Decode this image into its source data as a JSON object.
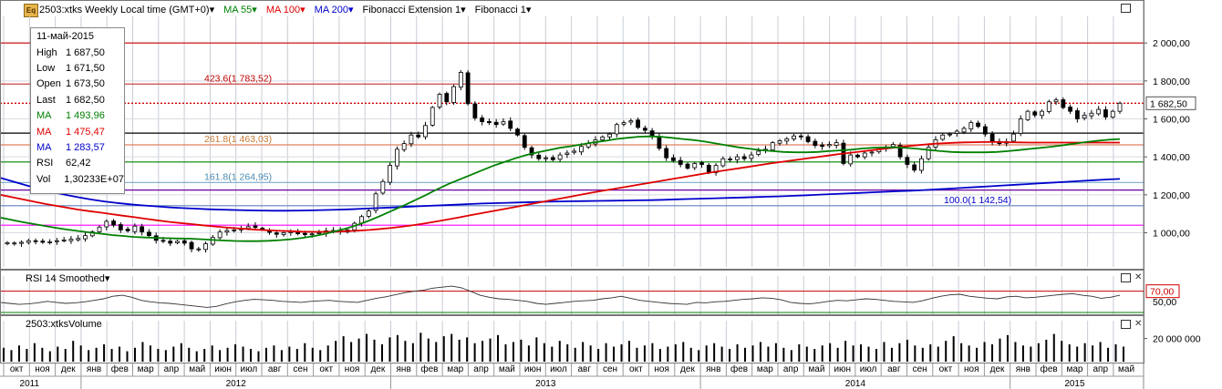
{
  "header": {
    "logo_text": "Eq",
    "symbol_title": "2503:xtks Weekly Local time (GMT+0)",
    "indicators": [
      {
        "label": "MA 55",
        "color": "#008000"
      },
      {
        "label": "MA 100",
        "color": "#e00000"
      },
      {
        "label": "MA 200",
        "color": "#0000cc"
      },
      {
        "label": "Fibonacci Extension 1",
        "color": "#000000"
      },
      {
        "label": "Fibonacci 1",
        "color": "#000000"
      }
    ]
  },
  "tooltip": {
    "date": "11-май-2015",
    "rows": [
      {
        "k": "High",
        "v": "1 687,50",
        "color": "#000000"
      },
      {
        "k": "Low",
        "v": "1 671,50",
        "color": "#000000"
      },
      {
        "k": "Open",
        "v": "1 673,50",
        "color": "#000000"
      },
      {
        "k": "Last",
        "v": "1 682,50",
        "color": "#000000"
      },
      {
        "k": "MA",
        "v": "1 493,96",
        "color": "#008000"
      },
      {
        "k": "MA",
        "v": "1 475,47",
        "color": "#e00000"
      },
      {
        "k": "MA",
        "v": "1 283,57",
        "color": "#0000cc"
      },
      {
        "k": "RSI",
        "v": "62,42",
        "color": "#000000"
      },
      {
        "k": "Vol",
        "v": "1,30233E+07",
        "color": "#000000"
      }
    ]
  },
  "chart_data": [
    {
      "type": "candlestick",
      "y_ticks": [
        "1 000,00",
        "1 200,00",
        "1 400,00",
        "1 600,00",
        "1 800,00",
        "2 000,00"
      ],
      "y_tick_values": [
        1000,
        1200,
        1400,
        1600,
        1800,
        2000
      ],
      "ylim": [
        820,
        2140
      ],
      "last_price_label": "1 682,50",
      "last_price": 1682.5,
      "fib_labels": [
        {
          "text": "423.6(1 783,52)",
          "value": 1783.52,
          "color": "#c00000"
        },
        {
          "text": "261.8(1 463,03)",
          "value": 1463.03,
          "color": "#c87832"
        },
        {
          "text": "161.8(1 264,95)",
          "value": 1264.95,
          "color": "#4a8ab0"
        },
        {
          "text": "100.0(1 142,54)",
          "value": 1142.54,
          "color": "#0000cc"
        }
      ],
      "horizontal_levels": [
        {
          "value": 2000,
          "color": "#cc0000"
        },
        {
          "value": 1783.52,
          "color": "#cc4444"
        },
        {
          "value": 1525,
          "color": "#000000"
        },
        {
          "value": 1463.03,
          "color": "#e08060"
        },
        {
          "value": 1373,
          "color": "#008000"
        },
        {
          "value": 1264.95,
          "color": "#7aaad0"
        },
        {
          "value": 1225,
          "color": "#6a00a0"
        },
        {
          "value": 1142.54,
          "color": "#6080c0"
        },
        {
          "value": 1040,
          "color": "#ff00ff"
        }
      ],
      "weekly_close": [
        948,
        946,
        950,
        958,
        955,
        950,
        952,
        958,
        962,
        966,
        970,
        985,
        1005,
        1030,
        1060,
        1040,
        1015,
        1010,
        1035,
        1005,
        985,
        960,
        955,
        945,
        955,
        945,
        915,
        915,
        942,
        975,
        1004,
        1012,
        1015,
        1020,
        1032,
        1028,
        1018,
        1002,
        992,
        1000,
        1006,
        995,
        990,
        994,
        1000,
        1010,
        1012,
        1005,
        1015,
        1050,
        1085,
        1115,
        1205,
        1270,
        1355,
        1440,
        1470,
        1515,
        1505,
        1565,
        1660,
        1730,
        1690,
        1770,
        1845,
        1680,
        1605,
        1585,
        1580,
        1570,
        1585,
        1550,
        1515,
        1450,
        1410,
        1390,
        1395,
        1385,
        1410,
        1420,
        1430,
        1455,
        1470,
        1490,
        1505,
        1520,
        1570,
        1580,
        1590,
        1555,
        1540,
        1510,
        1445,
        1395,
        1380,
        1360,
        1340,
        1365,
        1360,
        1320,
        1355,
        1390,
        1385,
        1400,
        1390,
        1410,
        1430,
        1440,
        1475,
        1485,
        1495,
        1510,
        1505,
        1480,
        1460,
        1455,
        1465,
        1475,
        1365,
        1410,
        1400,
        1420,
        1425,
        1440,
        1450,
        1465,
        1400,
        1360,
        1330,
        1390,
        1450,
        1490,
        1515,
        1520,
        1535,
        1550,
        1580,
        1560,
        1520,
        1480,
        1470,
        1480,
        1520,
        1600,
        1640,
        1620,
        1640,
        1690,
        1700,
        1660,
        1640,
        1600,
        1620,
        1630,
        1650,
        1610,
        1640,
        1682.5
      ],
      "ma_55": [
        1080,
        1068,
        1056,
        1046,
        1036,
        1026,
        1017,
        1009,
        1002,
        995,
        988,
        983,
        978,
        975,
        973,
        971,
        970,
        969,
        966,
        962,
        959,
        957,
        956,
        956,
        958,
        961,
        966,
        973,
        982,
        994,
        1008,
        1024,
        1043,
        1065,
        1090,
        1116,
        1142,
        1170,
        1198,
        1228,
        1256,
        1280,
        1304,
        1328,
        1352,
        1372,
        1392,
        1410,
        1424,
        1436,
        1448,
        1456,
        1466,
        1476,
        1484,
        1494,
        1500,
        1506,
        1508,
        1506,
        1500,
        1494,
        1488,
        1480,
        1470,
        1460,
        1450,
        1442,
        1435,
        1430,
        1426,
        1424,
        1424,
        1426,
        1430,
        1434,
        1438,
        1444,
        1448,
        1450,
        1450,
        1447,
        1442,
        1436,
        1430,
        1426,
        1424,
        1424,
        1424,
        1426,
        1430,
        1436,
        1442,
        1448,
        1454,
        1462,
        1470,
        1478,
        1485,
        1490,
        1494
      ],
      "ma_100": [
        1200,
        1188,
        1176,
        1164,
        1152,
        1142,
        1132,
        1122,
        1114,
        1106,
        1098,
        1090,
        1082,
        1074,
        1066,
        1058,
        1052,
        1046,
        1040,
        1034,
        1029,
        1024,
        1020,
        1016,
        1013,
        1010,
        1008,
        1006,
        1005,
        1005,
        1006,
        1008,
        1011,
        1015,
        1020,
        1026,
        1033,
        1041,
        1050,
        1060,
        1070,
        1081,
        1092,
        1103,
        1114,
        1125,
        1136,
        1147,
        1158,
        1169,
        1180,
        1191,
        1202,
        1213,
        1223,
        1233,
        1243,
        1253,
        1263,
        1273,
        1283,
        1293,
        1303,
        1313,
        1322,
        1331,
        1340,
        1349,
        1358,
        1367,
        1375,
        1383,
        1391,
        1399,
        1407,
        1415,
        1422,
        1429,
        1436,
        1443,
        1450,
        1456,
        1462,
        1467,
        1471,
        1474,
        1476,
        1477,
        1478,
        1478,
        1477,
        1476,
        1475,
        1475,
        1475,
        1475,
        1475,
        1475,
        1475,
        1475,
        1475
      ],
      "ma_200": [
        1290,
        1270,
        1250,
        1232,
        1215,
        1200,
        1187,
        1175,
        1165,
        1157,
        1150,
        1144,
        1139,
        1134,
        1130,
        1127,
        1124,
        1122,
        1120,
        1118,
        1117,
        1116,
        1116,
        1117,
        1118,
        1120,
        1122,
        1124,
        1127,
        1130,
        1133,
        1136,
        1139,
        1142,
        1145,
        1148,
        1151,
        1154,
        1156,
        1158,
        1160,
        1162,
        1164,
        1165,
        1166,
        1167,
        1168,
        1169,
        1170,
        1171,
        1172,
        1174,
        1176,
        1178,
        1180,
        1182,
        1184,
        1186,
        1188,
        1190,
        1192,
        1195,
        1198,
        1201,
        1204,
        1207,
        1210,
        1213,
        1216,
        1219,
        1222,
        1225,
        1229,
        1233,
        1237,
        1241,
        1245,
        1249,
        1253,
        1257,
        1261,
        1265,
        1269,
        1273,
        1277,
        1281,
        1283.57
      ],
      "x_month_labels": [
        "окт",
        "ноя",
        "дек",
        "янв",
        "фев",
        "мар",
        "апр",
        "май",
        "июн",
        "июл",
        "авг",
        "сен",
        "окт",
        "ноя",
        "дек",
        "янв",
        "фев",
        "мар",
        "апр",
        "май",
        "июн",
        "июл",
        "авг",
        "сен",
        "окт",
        "ноя",
        "дек",
        "янв",
        "фев",
        "мар",
        "апр",
        "май",
        "июн",
        "июл",
        "авг",
        "сен",
        "окт",
        "ноя",
        "дек",
        "янв",
        "фев",
        "мар",
        "апр",
        "май"
      ],
      "x_year_labels": [
        {
          "text": "2011",
          "center_month": 1
        },
        {
          "text": "2012",
          "center_month": 9
        },
        {
          "text": "2013",
          "center_month": 21
        },
        {
          "text": "2014",
          "center_month": 33
        },
        {
          "text": "2015",
          "center_month": 41.5
        }
      ]
    },
    {
      "type": "line",
      "title": "RSI 14 Smoothed",
      "level_label": "70,00",
      "level_value": 70,
      "y_ticks": [
        "50,00"
      ],
      "y_tick_values": [
        50
      ],
      "ylim": [
        28,
        82
      ],
      "values": [
        48,
        46,
        44,
        45,
        47,
        50,
        48,
        46,
        47,
        49,
        52,
        55,
        60,
        62,
        58,
        52,
        49,
        47,
        46,
        44,
        42,
        40,
        38,
        40,
        45,
        49,
        52,
        54,
        53,
        52,
        50,
        49,
        48,
        50,
        51,
        52,
        50,
        49,
        48,
        52,
        56,
        59,
        63,
        67,
        70,
        72,
        76,
        78,
        80,
        77,
        70,
        62,
        58,
        55,
        54,
        52,
        50,
        46,
        44,
        46,
        48,
        50,
        51,
        52,
        55,
        57,
        60,
        56,
        52,
        50,
        48,
        46,
        45,
        44,
        48,
        47,
        49,
        50,
        52,
        54,
        55,
        57,
        56,
        53,
        48,
        46,
        45,
        47,
        50,
        52,
        51,
        53,
        55,
        54,
        52,
        50,
        49,
        48,
        51,
        56,
        60,
        63,
        64,
        60,
        58,
        56,
        55,
        59,
        60,
        57,
        58,
        60,
        62,
        64,
        65,
        62,
        60,
        56,
        58,
        62
      ]
    },
    {
      "type": "bar",
      "title": "2503:xtksVolume",
      "y_ticks": [
        "20 000 000"
      ],
      "y_tick_values": [
        20000000
      ],
      "ylim": [
        0,
        26000000
      ],
      "values": [
        12,
        10,
        14,
        11,
        16,
        12,
        9,
        13,
        11,
        18,
        14,
        10,
        12,
        15,
        11,
        13,
        9,
        12,
        17,
        14,
        11,
        10,
        13,
        16,
        12,
        9,
        11,
        14,
        10,
        12,
        15,
        13,
        11,
        9,
        12,
        14,
        10,
        13,
        11,
        16,
        12,
        10,
        14,
        18,
        22,
        17,
        20,
        24,
        19,
        15,
        21,
        23,
        18,
        16,
        25,
        20,
        17,
        22,
        24,
        19,
        21,
        16,
        18,
        20,
        23,
        15,
        17,
        19,
        14,
        21,
        16,
        13,
        18,
        15,
        12,
        17,
        14,
        11,
        16,
        13,
        15,
        18,
        12,
        14,
        16,
        11,
        13,
        15,
        17,
        12,
        10,
        14,
        16,
        13,
        11,
        15,
        12,
        14,
        17,
        13,
        16,
        12,
        10,
        15,
        13,
        11,
        14,
        16,
        12,
        18,
        14,
        15,
        13,
        11,
        17,
        12,
        16,
        19,
        14,
        12,
        15,
        13,
        18,
        22,
        16,
        14,
        12,
        17,
        15,
        20,
        23,
        17,
        14,
        13,
        16,
        19,
        24,
        18,
        15,
        13,
        16,
        14,
        17,
        12,
        15,
        13
      ]
    }
  ]
}
